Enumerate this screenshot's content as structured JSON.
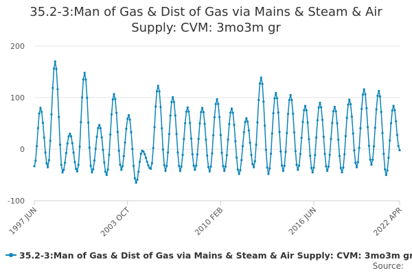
{
  "chart_data": {
    "type": "line",
    "title_lines": [
      "35.2-3:Man of Gas & Dist of Gas via Mains & Steam & Air",
      "Supply: CVM: 3mo3m gr"
    ],
    "series_name": "35.2-3:Man of Gas & Dist of Gas via Mains & Steam & Air Supply: CVM: 3mo3m gr",
    "source_label": "Source:",
    "x_start": "1997-06",
    "x_end": "2022-04",
    "x_ticks": [
      {
        "label": "1997 JUN",
        "date": "1997-06"
      },
      {
        "label": "2003 OCT",
        "date": "2003-10"
      },
      {
        "label": "2010 FEB",
        "date": "2010-02"
      },
      {
        "label": "2016 JUN",
        "date": "2016-06"
      },
      {
        "label": "2022 APR",
        "date": "2022-04"
      }
    ],
    "y_ticks": [
      -100,
      0,
      100,
      200
    ],
    "ylim": [
      -100,
      200
    ],
    "grid": "horizontal",
    "legend_position": "bottom",
    "series_color": "#0a84b8",
    "peaks": [
      [
        "1997-11",
        80
      ],
      [
        "1998-11",
        170
      ],
      [
        "1999-11",
        30
      ],
      [
        "2000-11",
        148
      ],
      [
        "2001-11",
        47
      ],
      [
        "2002-11",
        107
      ],
      [
        "2003-11",
        66
      ],
      [
        "2004-10",
        -3
      ],
      [
        "2005-11",
        123
      ],
      [
        "2006-11",
        101
      ],
      [
        "2007-11",
        81
      ],
      [
        "2008-11",
        80
      ],
      [
        "2009-11",
        97
      ],
      [
        "2010-11",
        79
      ],
      [
        "2011-11",
        60
      ],
      [
        "2012-11",
        139
      ],
      [
        "2013-11",
        109
      ],
      [
        "2014-11",
        105
      ],
      [
        "2015-11",
        84
      ],
      [
        "2016-11",
        90
      ],
      [
        "2017-11",
        82
      ],
      [
        "2018-11",
        96
      ],
      [
        "2019-11",
        116
      ],
      [
        "2020-11",
        113
      ],
      [
        "2021-11",
        84
      ]
    ],
    "troughs": [
      [
        "1997-06",
        -33
      ],
      [
        "1998-05",
        -35
      ],
      [
        "1999-05",
        -45
      ],
      [
        "2000-05",
        -43
      ],
      [
        "2001-05",
        -45
      ],
      [
        "2002-05",
        -50
      ],
      [
        "2003-05",
        -40
      ],
      [
        "2004-05",
        -65
      ],
      [
        "2005-05",
        -38
      ],
      [
        "2006-05",
        -42
      ],
      [
        "2007-05",
        -42
      ],
      [
        "2008-05",
        -40
      ],
      [
        "2009-05",
        -43
      ],
      [
        "2010-05",
        -42
      ],
      [
        "2011-05",
        -48
      ],
      [
        "2012-05",
        -35
      ],
      [
        "2013-05",
        -48
      ],
      [
        "2014-05",
        -42
      ],
      [
        "2015-05",
        -40
      ],
      [
        "2016-05",
        -45
      ],
      [
        "2017-05",
        -42
      ],
      [
        "2018-05",
        -45
      ],
      [
        "2019-05",
        -35
      ],
      [
        "2020-05",
        -30
      ],
      [
        "2021-05",
        -50
      ],
      [
        "2022-04",
        -2
      ]
    ]
  }
}
